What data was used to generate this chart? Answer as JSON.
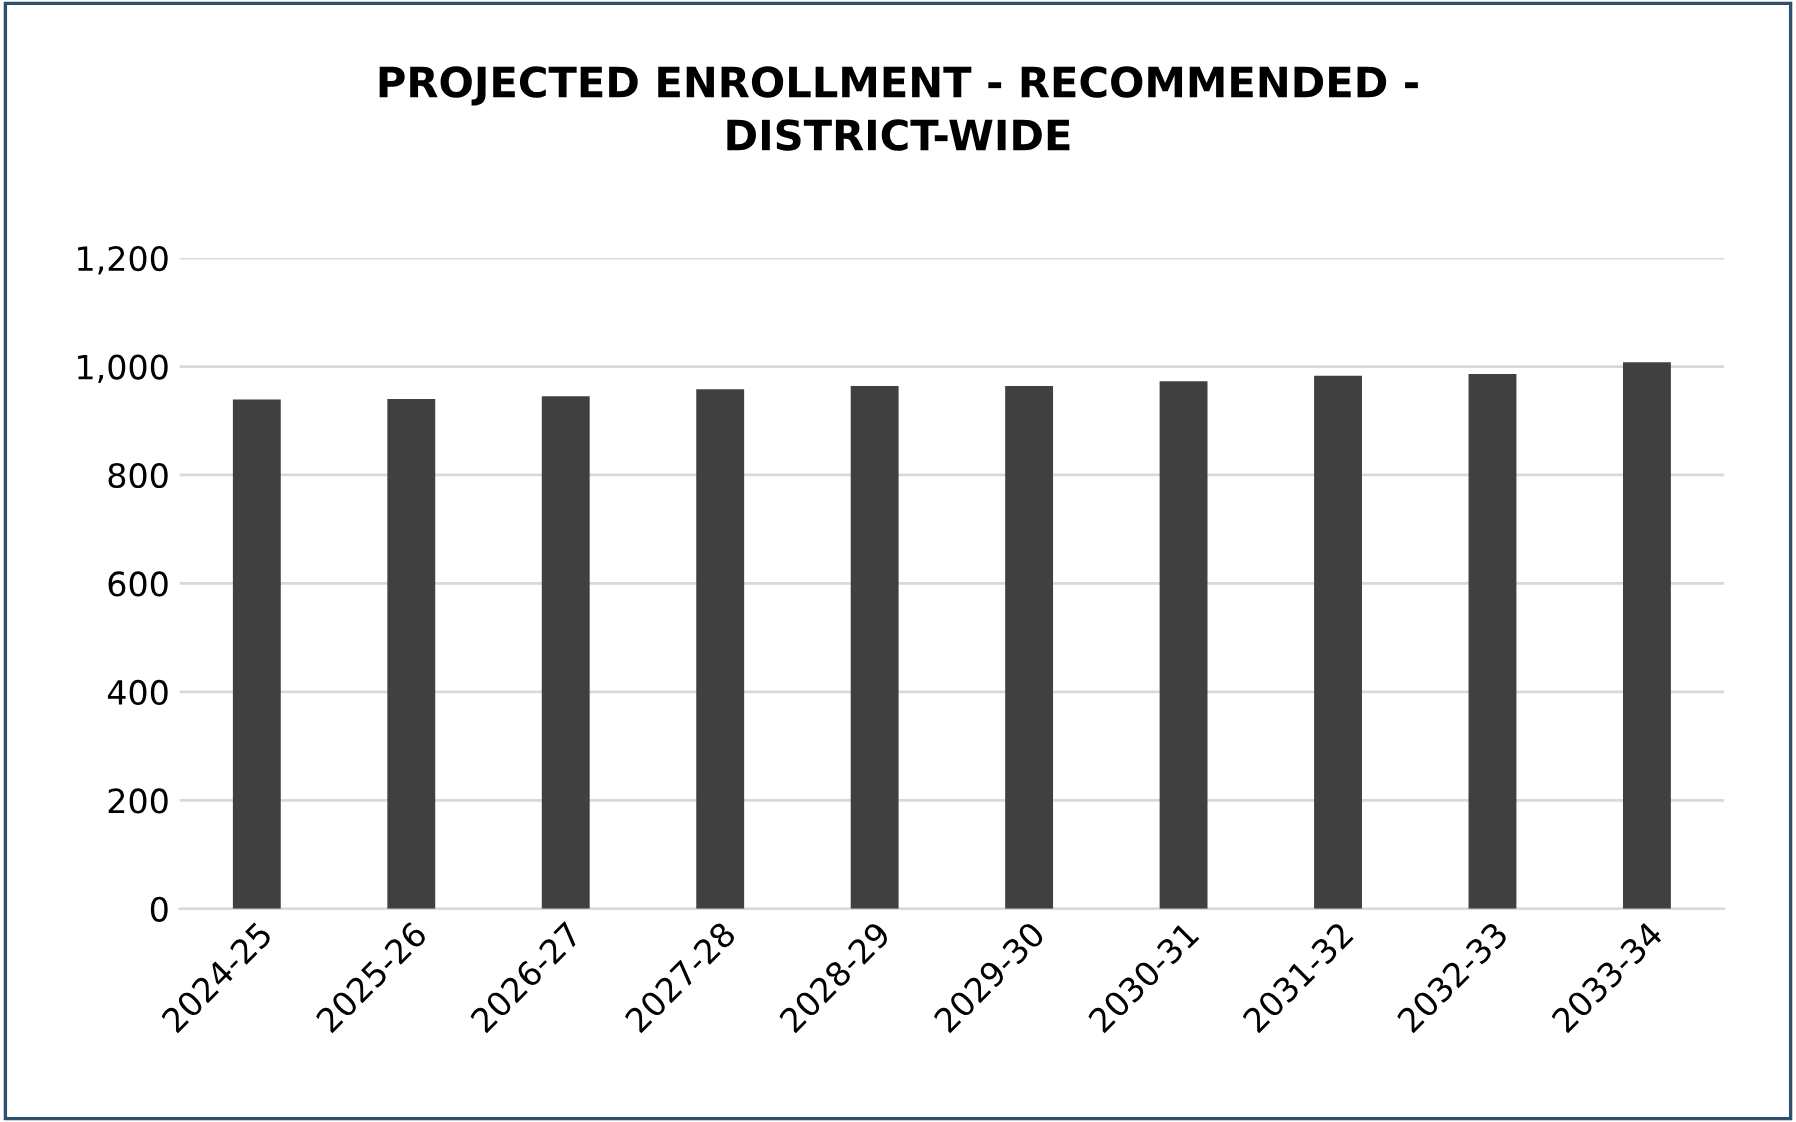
{
  "chart_data": {
    "type": "bar",
    "title": "PROJECTED ENROLLMENT - RECOMMENDED -\nDISTRICT-WIDE",
    "categories": [
      "2024-25",
      "2025-26",
      "2026-27",
      "2027-28",
      "2028-29",
      "2029-30",
      "2030-31",
      "2031-32",
      "2032-33",
      "2033-34"
    ],
    "values": [
      939,
      940,
      945,
      958,
      964,
      964,
      973,
      983,
      986,
      1008
    ],
    "color": "#404040",
    "ylim": [
      0,
      1200
    ],
    "yticks": [
      0,
      {
        "value": 200,
        "label": "200"
      },
      {
        "value": 400,
        "label": "400"
      },
      {
        "value": 600,
        "label": "600"
      },
      {
        "value": 800,
        "label": "800"
      },
      {
        "value": 1000,
        "label": "1,000"
      },
      {
        "value": 1200,
        "label": "1,200"
      }
    ],
    "grid": "y",
    "legend": false
  }
}
